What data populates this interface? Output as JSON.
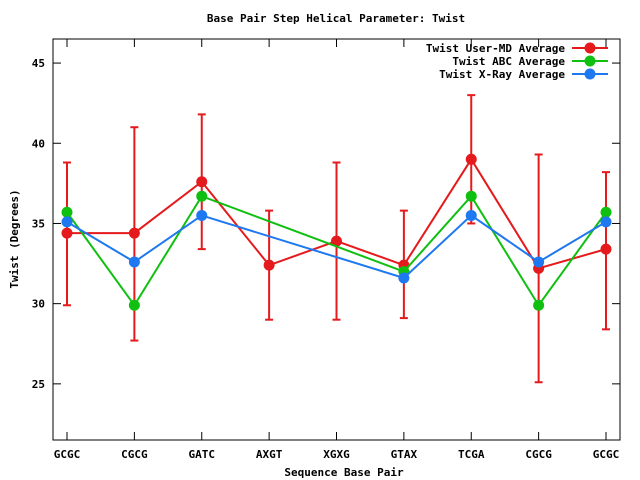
{
  "chart_data": {
    "type": "line",
    "title": "Base Pair Step Helical Parameter: Twist",
    "xlabel": "Sequence Base Pair",
    "ylabel": "Twist (Degrees)",
    "categories": [
      "GCGC",
      "CGCG",
      "GATC",
      "AXGT",
      "XGXG",
      "GTAX",
      "TCGA",
      "CGCG",
      "GCGC"
    ],
    "ylim": [
      21.5,
      46.5
    ],
    "yticks": [
      25,
      30,
      35,
      40,
      45
    ],
    "grid": false,
    "legend_position": "top-right",
    "series": [
      {
        "name": "Twist User-MD Average",
        "color": "#e41a1c",
        "values": [
          34.4,
          34.4,
          37.6,
          32.4,
          33.9,
          32.4,
          39.0,
          32.2,
          33.4
        ],
        "error_low": [
          29.9,
          27.7,
          33.4,
          29.0,
          29.0,
          29.1,
          35.0,
          25.1,
          28.4
        ],
        "error_high": [
          38.8,
          41.0,
          41.8,
          35.8,
          38.8,
          35.8,
          43.0,
          39.3,
          38.2
        ]
      },
      {
        "name": "Twist ABC Average",
        "color": "#10c010",
        "values": [
          35.7,
          29.9,
          36.7,
          null,
          null,
          32.0,
          36.7,
          29.9,
          35.7
        ]
      },
      {
        "name": "Twist X-Ray Average",
        "color": "#1e78f0",
        "values": [
          35.1,
          32.6,
          35.5,
          null,
          null,
          31.6,
          35.5,
          32.6,
          35.1
        ]
      }
    ]
  }
}
